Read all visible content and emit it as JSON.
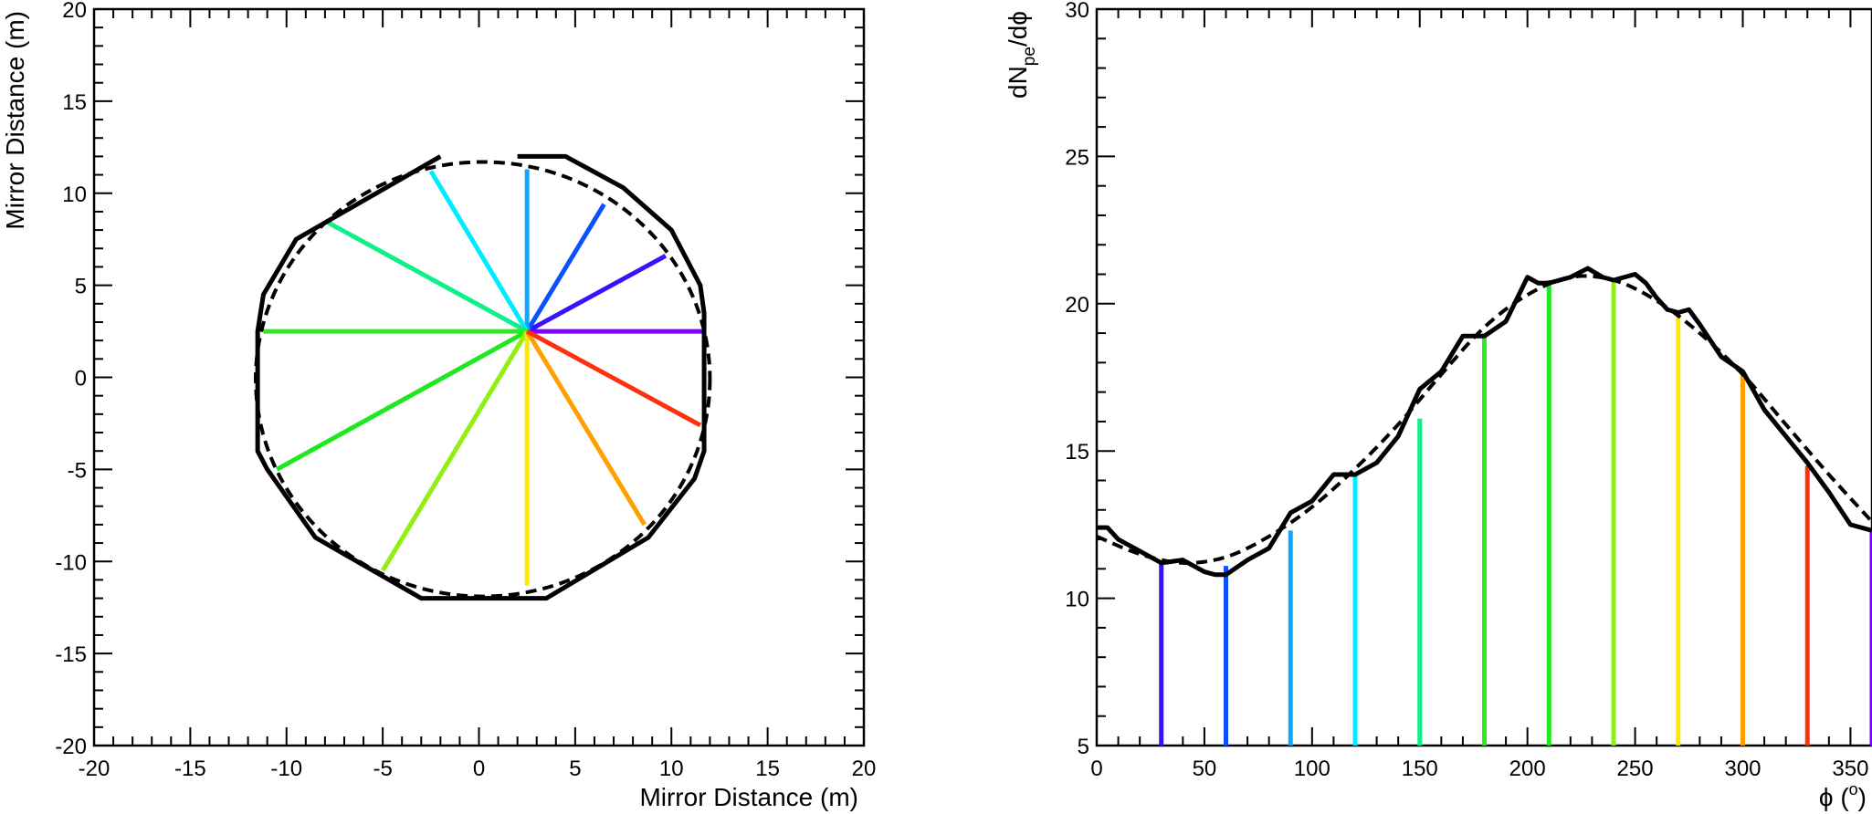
{
  "chart_data": [
    {
      "type": "line",
      "name": "ring-projection",
      "xlabel": "Mirror Distance (m)",
      "ylabel": "Mirror Distance (m)",
      "xlim": [
        -20,
        20
      ],
      "ylim": [
        -20,
        20
      ],
      "xticks": [
        -20,
        -15,
        -10,
        -5,
        0,
        5,
        10,
        15,
        20
      ],
      "yticks": [
        -20,
        -15,
        -10,
        -5,
        0,
        5,
        10,
        15,
        20
      ],
      "center": [
        2.5,
        2.5
      ],
      "series": [
        {
          "name": "polygon-ring",
          "style": "solid",
          "color": "#000000",
          "x": [
            2,
            4.5,
            7.5,
            10,
            11.5,
            11.7,
            11.7,
            11.2,
            8.8,
            3.5,
            -3,
            -8.5,
            -11,
            -11.5,
            -11.5,
            -11.2,
            -9.5,
            -2
          ],
          "y": [
            12,
            12,
            10.3,
            8,
            5,
            3.5,
            -4,
            -5.5,
            -8.7,
            -12,
            -12,
            -8.7,
            -5,
            -4,
            2.5,
            4.5,
            7.5,
            12
          ]
        },
        {
          "name": "circle-fit",
          "style": "dashed",
          "color": "#000000",
          "cx": 0.2,
          "cy": -0.1,
          "r": 11.8
        }
      ],
      "spokes": [
        {
          "angle_deg": 0,
          "end": [
            11.6,
            2.5
          ],
          "color": "#7a00ff"
        },
        {
          "angle_deg": 30,
          "end": [
            9.7,
            6.6
          ],
          "color": "#3a10ff"
        },
        {
          "angle_deg": 60,
          "end": [
            6.5,
            9.4
          ],
          "color": "#0a50ff"
        },
        {
          "angle_deg": 90,
          "end": [
            2.5,
            11.3
          ],
          "color": "#10a8ff"
        },
        {
          "angle_deg": 120,
          "end": [
            -2.5,
            11.2
          ],
          "color": "#00ecff"
        },
        {
          "angle_deg": 150,
          "end": [
            -8,
            8.5
          ],
          "color": "#10f08a"
        },
        {
          "angle_deg": 180,
          "end": [
            -11.2,
            2.5
          ],
          "color": "#30e820"
        },
        {
          "angle_deg": 210,
          "end": [
            -10.5,
            -5
          ],
          "color": "#20e820"
        },
        {
          "angle_deg": 240,
          "end": [
            -5,
            -10.5
          ],
          "color": "#90f010"
        },
        {
          "angle_deg": 270,
          "end": [
            2.5,
            -11.3
          ],
          "color": "#ffe800"
        },
        {
          "angle_deg": 300,
          "end": [
            8.6,
            -8
          ],
          "color": "#ffa000"
        },
        {
          "angle_deg": 330,
          "end": [
            11.5,
            -2.6
          ],
          "color": "#ff3010"
        }
      ]
    },
    {
      "type": "line",
      "name": "npe-vs-phi",
      "xlabel_text": "ϕ (",
      "xlabel_sup": "o",
      "xlabel_close": ")",
      "ylabel_main": "dN",
      "ylabel_sub": "pe",
      "ylabel_tail": "/dϕ",
      "xlim": [
        0,
        360
      ],
      "ylim": [
        5,
        30
      ],
      "xticks": [
        0,
        50,
        100,
        150,
        200,
        250,
        300,
        350
      ],
      "yticks": [
        5,
        10,
        15,
        20,
        25,
        30
      ],
      "series": [
        {
          "name": "histogram",
          "style": "solid",
          "color": "#000000",
          "x": [
            0,
            5,
            10,
            20,
            30,
            40,
            50,
            55,
            60,
            70,
            80,
            90,
            100,
            110,
            120,
            130,
            140,
            150,
            160,
            170,
            180,
            190,
            200,
            205,
            210,
            220,
            228,
            235,
            240,
            245,
            250,
            255,
            260,
            265,
            270,
            275,
            280,
            290,
            300,
            310,
            320,
            330,
            340,
            350,
            360
          ],
          "y": [
            12.4,
            12.4,
            12,
            11.6,
            11.2,
            11.3,
            10.9,
            10.8,
            10.8,
            11.3,
            11.7,
            12.9,
            13.3,
            14.2,
            14.2,
            14.6,
            15.5,
            17.1,
            17.7,
            18.9,
            18.9,
            19.4,
            20.9,
            20.7,
            20.7,
            20.9,
            21.2,
            20.9,
            20.8,
            20.9,
            21,
            20.7,
            20.2,
            19.8,
            19.7,
            19.8,
            19.3,
            18.2,
            17.7,
            16.4,
            15.5,
            14.6,
            13.6,
            12.5,
            12.3
          ]
        },
        {
          "name": "fit",
          "style": "dashed",
          "color": "#000000",
          "x": [
            0,
            20,
            40,
            60,
            80,
            100,
            120,
            140,
            160,
            180,
            200,
            220,
            240,
            260,
            280,
            300,
            320,
            340,
            360
          ],
          "y": [
            12.1,
            11.5,
            11.2,
            11.4,
            12.1,
            13.1,
            14.4,
            15.9,
            17.6,
            19.2,
            20.3,
            20.9,
            20.8,
            20.1,
            19,
            17.6,
            15.9,
            14.2,
            12.6
          ]
        }
      ],
      "bars": [
        {
          "x": 30,
          "top": 11.2,
          "color": "#3a10ff"
        },
        {
          "x": 60,
          "top": 11.1,
          "color": "#0a50ff"
        },
        {
          "x": 90,
          "top": 12.3,
          "color": "#10a8ff"
        },
        {
          "x": 120,
          "top": 14.2,
          "color": "#00ecff"
        },
        {
          "x": 150,
          "top": 16.1,
          "color": "#10f08a"
        },
        {
          "x": 180,
          "top": 19.0,
          "color": "#30e820"
        },
        {
          "x": 210,
          "top": 20.8,
          "color": "#20e820"
        },
        {
          "x": 240,
          "top": 20.8,
          "color": "#90f010"
        },
        {
          "x": 270,
          "top": 19.7,
          "color": "#ffe800"
        },
        {
          "x": 300,
          "top": 17.6,
          "color": "#ffa000"
        },
        {
          "x": 330,
          "top": 14.5,
          "color": "#ff3010"
        },
        {
          "x": 360,
          "top": 12.3,
          "color": "#7a00ff"
        }
      ]
    }
  ]
}
